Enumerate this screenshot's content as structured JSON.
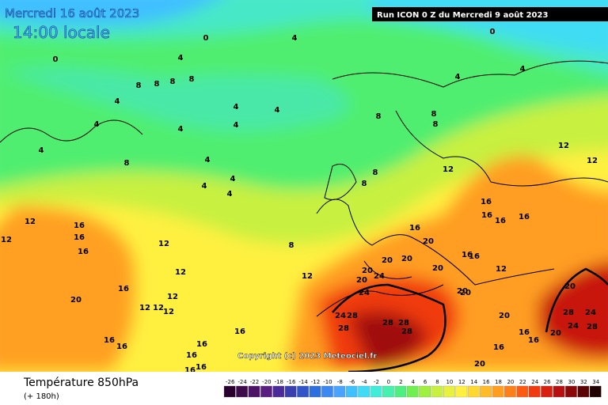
{
  "header": {
    "date": "Mercredi 16 août 2023",
    "time": "14:00 locale",
    "run": "Run ICON 0 Z du Mercredi 9 août 2023"
  },
  "copyright": "Copyright (c) 2023 Meteociel.fr",
  "footer": {
    "title": "Température 850hPa",
    "lead": "(+ 180h)"
  },
  "scale": {
    "labels": [
      -26,
      -24,
      -22,
      -20,
      -18,
      -16,
      -14,
      -12,
      -10,
      -8,
      -6,
      -4,
      -2,
      0,
      2,
      4,
      6,
      8,
      10,
      12,
      14,
      16,
      18,
      20,
      22,
      24,
      26,
      28,
      30,
      32,
      34
    ],
    "colors": [
      "#2a0030",
      "#3d0a4a",
      "#4d1366",
      "#5a1e80",
      "#4b2a99",
      "#3a3fb0",
      "#2f55c8",
      "#2e6fe0",
      "#3a88f0",
      "#4aa3ff",
      "#3fc0ff",
      "#40dcf5",
      "#42ecd8",
      "#45f0b0",
      "#4cf080",
      "#70f050",
      "#a0f040",
      "#c8f040",
      "#e8f040",
      "#fff040",
      "#ffd830",
      "#ffbb28",
      "#ff9e20",
      "#ff7f18",
      "#ff5a10",
      "#f03a10",
      "#d82010",
      "#b81010",
      "#8a0808",
      "#5a0404",
      "#200000"
    ]
  },
  "map_labels": [
    0,
    0,
    0,
    4,
    4,
    8,
    8,
    8,
    8,
    4,
    4,
    4,
    4,
    4,
    4,
    4,
    8,
    4,
    4,
    4,
    4,
    8,
    8,
    8,
    4,
    4,
    12,
    12,
    12,
    8,
    8,
    8,
    12,
    16,
    16,
    16,
    12,
    12,
    12,
    12,
    16,
    20,
    12,
    12,
    12,
    12,
    16,
    16,
    16,
    16,
    16,
    16,
    16,
    16,
    16,
    16,
    16,
    16,
    20,
    20,
    20,
    20,
    16,
    16,
    12,
    20,
    20,
    24,
    24,
    20,
    20,
    20,
    24,
    28,
    28,
    28,
    28,
    28,
    20,
    28,
    24,
    24,
    28,
    16,
    16,
    20,
    16,
    20
  ]
}
